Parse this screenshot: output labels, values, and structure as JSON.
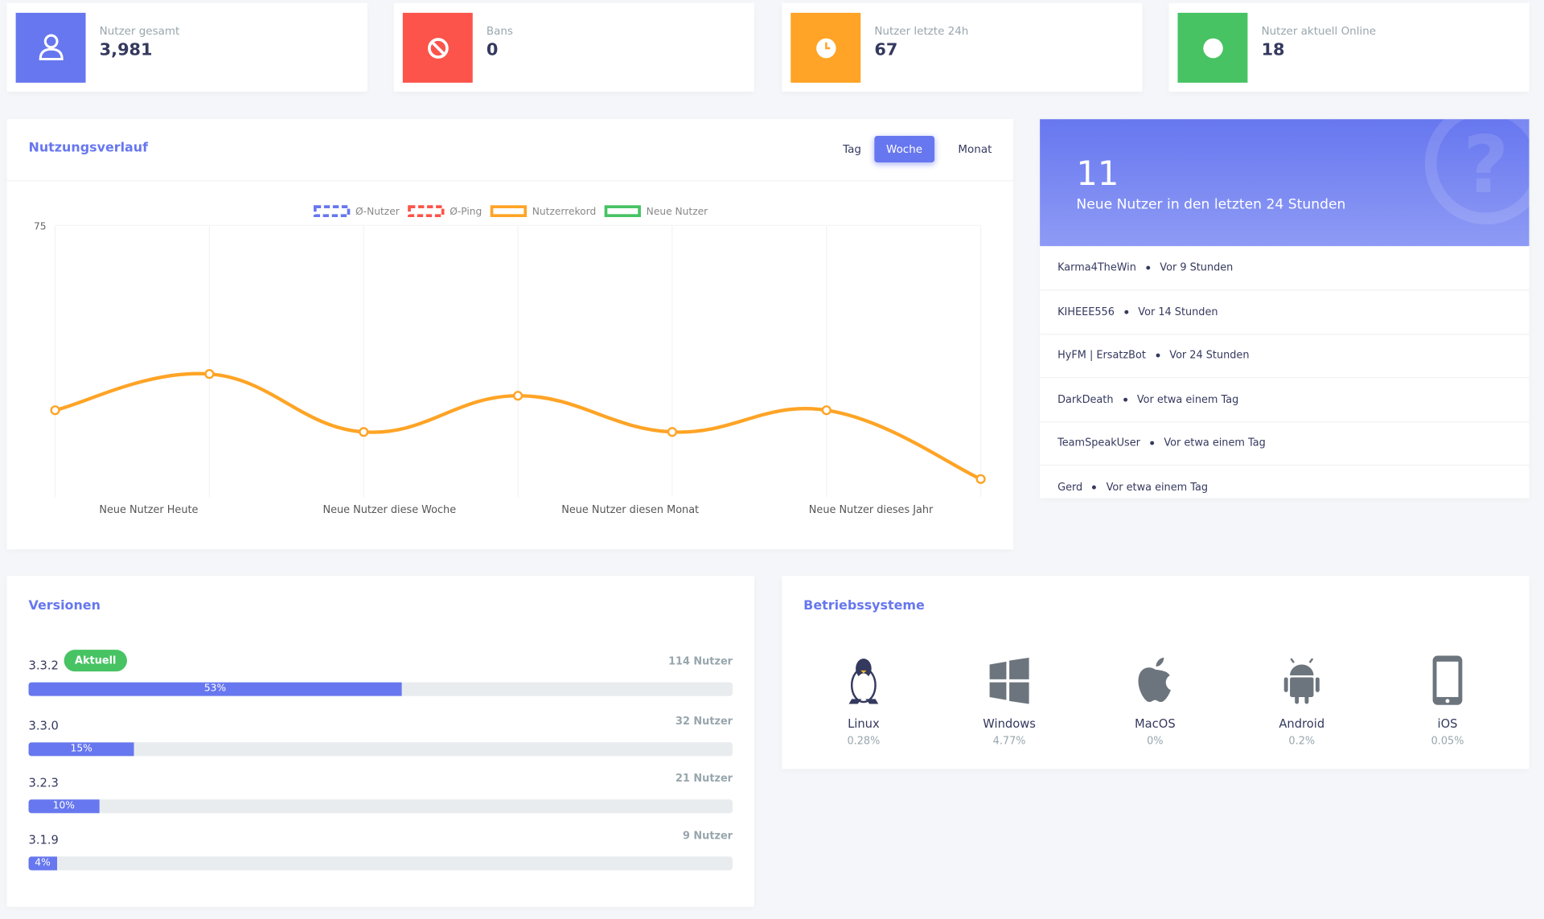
{
  "stats": [
    {
      "label": "Nutzer gesamt",
      "value": "3,981",
      "color": "#6777ef"
    },
    {
      "label": "Bans",
      "value": "0",
      "color": "#fc544b"
    },
    {
      "label": "Nutzer letzte 24h",
      "value": "67",
      "color": "#ffa426"
    },
    {
      "label": "Nutzer aktuell Online",
      "value": "18",
      "color": "#47c363"
    }
  ],
  "chart_data": {
    "type": "line",
    "title": "Nutzungsverlauf",
    "range_buttons": [
      "Tag",
      "Woche",
      "Monat"
    ],
    "active_range": 1,
    "x_labels": [
      "Neue Nutzer Heute",
      "Neue Nutzer diese Woche",
      "Neue Nutzer diesen Monat",
      "Neue Nutzer dieses Jahr"
    ],
    "series": [
      {
        "name": "Ø-Nutzer",
        "color": "#6777ef",
        "dashed": true
      },
      {
        "name": "Ø-Ping",
        "color": "#fc544b",
        "dashed": true
      },
      {
        "name": "Nutzerrekord",
        "color": "#ffa426",
        "values": [
          24,
          34,
          18,
          28,
          18,
          24,
          5
        ]
      },
      {
        "name": "Neue Nutzer",
        "color": "#47c363"
      }
    ],
    "ylim": [
      0,
      75
    ],
    "yticks": [
      75
    ]
  },
  "new_users": {
    "count": 11,
    "caption": "Neue Nutzer in den letzten 24 Stunden",
    "items": [
      {
        "name": "Karma4TheWin",
        "time": "Vor 9 Stunden"
      },
      {
        "name": "KIHEEE556",
        "time": "Vor 14 Stunden"
      },
      {
        "name": "HyFM | ErsatzBot",
        "time": "Vor 24 Stunden"
      },
      {
        "name": "DarkDeath",
        "time": "Vor etwa einem Tag"
      },
      {
        "name": "TeamSpeakUser",
        "time": "Vor etwa einem Tag"
      },
      {
        "name": "Gerd",
        "time": "Vor etwa einem Tag"
      }
    ]
  },
  "versions": {
    "title": "Versionen",
    "badge": "Aktuell",
    "rows": [
      {
        "version": "3.3.2",
        "users": "114 Nutzer",
        "percent": 53,
        "percent_label": "53%"
      },
      {
        "version": "3.3.0",
        "users": "32 Nutzer",
        "percent": 15,
        "percent_label": "15%"
      },
      {
        "version": "3.2.3",
        "users": "21 Nutzer",
        "percent": 10,
        "percent_label": "10%"
      },
      {
        "version": "3.1.9",
        "users": "9 Nutzer",
        "percent": 4,
        "percent_label": "4%"
      }
    ]
  },
  "os": {
    "title": "Betriebssysteme",
    "items": [
      {
        "name": "Linux",
        "share": "0.28%"
      },
      {
        "name": "Windows",
        "share": "4.77%"
      },
      {
        "name": "MacOS",
        "share": "0%"
      },
      {
        "name": "Android",
        "share": "0.2%"
      },
      {
        "name": "iOS",
        "share": "0.05%"
      }
    ]
  }
}
